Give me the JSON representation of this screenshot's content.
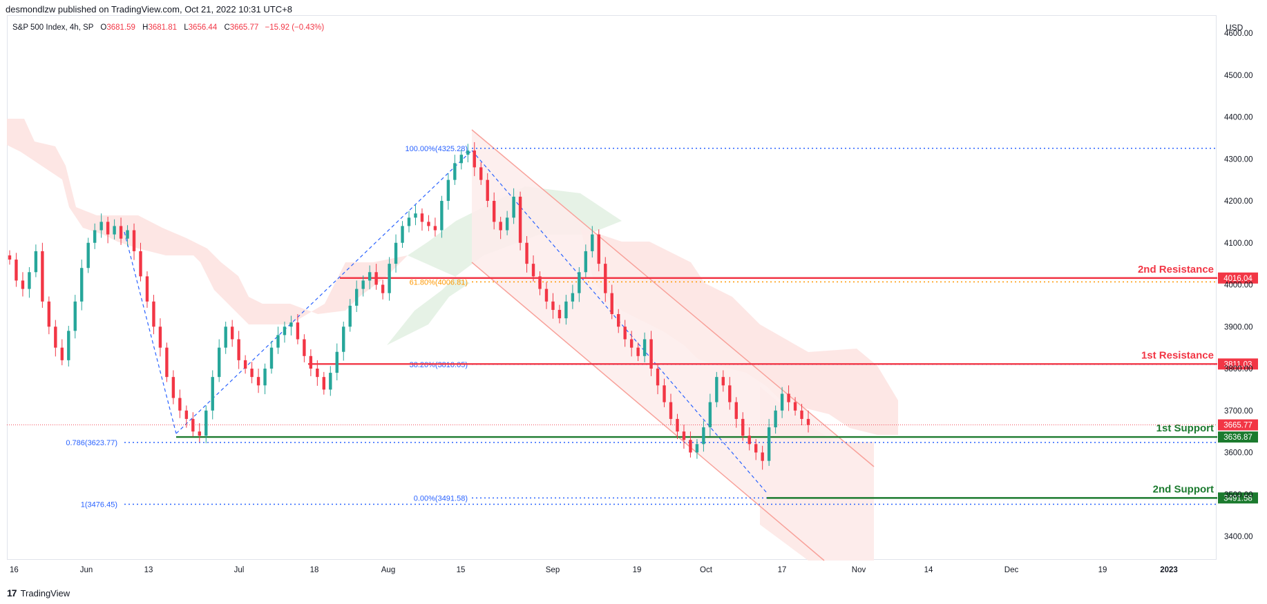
{
  "header": {
    "publisher": "desmondlzw published on TradingView.com, Oct 21, 2022 10:31 UTC+8"
  },
  "legend": {
    "symbol": "S&P 500 Index, 4h, SP",
    "o_label": "O",
    "o_value": "3681.59",
    "h_label": "H",
    "h_value": "3681.81",
    "l_label": "L",
    "l_value": "3656.44",
    "c_label": "C",
    "c_value": "3665.77",
    "change": "−15.92 (−0.43%)"
  },
  "currency": "USD",
  "footer": {
    "brand": "TradingView",
    "icon": "tradingview-logo-icon"
  },
  "colors": {
    "up": "#26a69a",
    "down": "#f23645",
    "resistance": "#f23645",
    "support": "#1b7a2e",
    "fib": "#2962ff",
    "fib_golden": "#ff9800",
    "channel": "#f8a19a",
    "cloud_red": "#fde3e1",
    "cloud_green": "#e3f1e3"
  },
  "annotations": {
    "res2_label": "2nd Resistance",
    "res2_price": "4016.04",
    "res1_label": "1st Resistance",
    "res1_price": "3811.03",
    "sup1_label": "1st Support",
    "sup1_price": "3636.87",
    "sup2_label": "2nd Support",
    "sup2_price": "3491.58",
    "last_price": "3665.77",
    "fib_100": "100.00%(4325.28)",
    "fib_618": "61.80%(4006.81)",
    "fib_382": "38.20%(3810.05)",
    "fib_0": "0.00%(3491.58)",
    "fib_786": "0.786(3623.77)",
    "fib_1": "1(3476.45)"
  },
  "chart_data": {
    "type": "candlestick",
    "title": "S&P 500 Index, 4h, SP",
    "ylabel": "USD",
    "ylim": [
      3330,
      4620
    ],
    "y_ticks": [
      "4600.00",
      "4500.00",
      "4400.00",
      "4300.00",
      "4200.00",
      "4100.00",
      "4000.00",
      "3900.00",
      "3800.00",
      "3700.00",
      "3600.00",
      "3500.00",
      "3400.00"
    ],
    "x_ticks": [
      "16",
      "Jun",
      "13",
      "Jul",
      "18",
      "Aug",
      "15",
      "Sep",
      "19",
      "Oct",
      "17",
      "Nov",
      "14",
      "Dec",
      "19",
      "2023"
    ],
    "horizontal_levels": [
      {
        "name": "2nd Resistance",
        "value": 4016.04
      },
      {
        "name": "1st Resistance",
        "value": 3811.03
      },
      {
        "name": "1st Support",
        "value": 3636.87
      },
      {
        "name": "2nd Support",
        "value": 3491.58
      }
    ],
    "fibonacci": [
      {
        "label": "100.00%",
        "value": 4325.28
      },
      {
        "label": "61.80%",
        "value": 4006.81
      },
      {
        "label": "38.20%",
        "value": 3810.05
      },
      {
        "label": "0.00%",
        "value": 3491.58
      },
      {
        "label": "0.786",
        "value": 3623.77
      },
      {
        "label": "1",
        "value": 3476.45
      }
    ],
    "last_close": 3665.77,
    "series_close": [
      4060,
      4010,
      3990,
      4030,
      4080,
      3960,
      3900,
      3850,
      3820,
      3890,
      3960,
      4040,
      4100,
      4130,
      4150,
      4120,
      4140,
      4110,
      4130,
      4080,
      4020,
      3960,
      3900,
      3850,
      3780,
      3730,
      3700,
      3680,
      3650,
      3640,
      3700,
      3780,
      3850,
      3900,
      3870,
      3820,
      3800,
      3780,
      3760,
      3800,
      3850,
      3880,
      3900,
      3910,
      3870,
      3830,
      3800,
      3780,
      3750,
      3790,
      3840,
      3900,
      3950,
      3990,
      4010,
      4030,
      4000,
      3980,
      4050,
      4100,
      4140,
      4160,
      4170,
      4150,
      4140,
      4130,
      4200,
      4250,
      4290,
      4310,
      4320,
      4280,
      4250,
      4200,
      4150,
      4130,
      4160,
      4210,
      4100,
      4050,
      4020,
      3990,
      3960,
      3940,
      3920,
      3960,
      3980,
      4030,
      4080,
      4120,
      4050,
      3980,
      3930,
      3900,
      3870,
      3850,
      3830,
      3870,
      3800,
      3760,
      3720,
      3680,
      3650,
      3630,
      3600,
      3620,
      3660,
      3720,
      3780,
      3760,
      3720,
      3680,
      3640,
      3620,
      3600,
      3580,
      3660,
      3700,
      3740,
      3720,
      3700,
      3680,
      3665.77
    ]
  }
}
